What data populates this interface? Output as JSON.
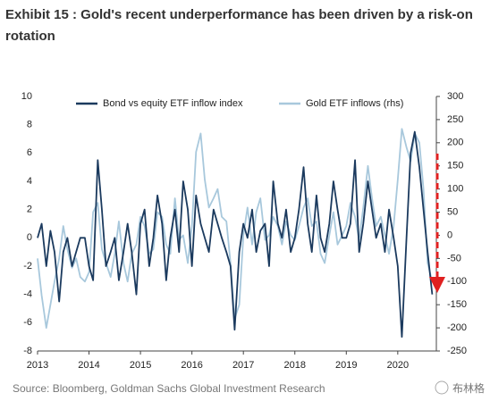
{
  "chart_data": {
    "type": "line",
    "title_lines": [
      "Exhibit 15 : Gold's recent underperformance has been driven by a risk-on",
      "rotation"
    ],
    "source": "Source: Bloomberg, Goldman Sachs Global Investment Research",
    "watermark": "布林格",
    "x": [
      2013,
      2013.08,
      2013.17,
      2013.25,
      2013.33,
      2013.42,
      2013.5,
      2013.58,
      2013.67,
      2013.75,
      2013.83,
      2013.92,
      2014,
      2014.08,
      2014.17,
      2014.25,
      2014.33,
      2014.42,
      2014.5,
      2014.58,
      2014.67,
      2014.75,
      2014.83,
      2014.92,
      2015,
      2015.08,
      2015.17,
      2015.25,
      2015.33,
      2015.42,
      2015.5,
      2015.58,
      2015.67,
      2015.75,
      2015.83,
      2015.92,
      2016,
      2016.08,
      2016.17,
      2016.25,
      2016.33,
      2016.42,
      2016.5,
      2016.58,
      2016.67,
      2016.75,
      2016.83,
      2016.92,
      2017,
      2017.08,
      2017.17,
      2017.25,
      2017.33,
      2017.42,
      2017.5,
      2017.58,
      2017.67,
      2017.75,
      2017.83,
      2017.92,
      2018,
      2018.08,
      2018.17,
      2018.25,
      2018.33,
      2018.42,
      2018.5,
      2018.58,
      2018.67,
      2018.75,
      2018.83,
      2018.92,
      2019,
      2019.08,
      2019.17,
      2019.25,
      2019.33,
      2019.42,
      2019.5,
      2019.58,
      2019.67,
      2019.75,
      2019.83,
      2019.92,
      2020,
      2020.08,
      2020.17,
      2020.25,
      2020.33,
      2020.42,
      2020.5,
      2020.58,
      2020.67
    ],
    "series": [
      {
        "name": "Bond vs equity ETF inflow index",
        "color": "#1b3a5e",
        "values": [
          0,
          1,
          -2,
          0.5,
          -1,
          -4.5,
          -1,
          0,
          -2,
          -1,
          0,
          0,
          -2,
          -3,
          5.5,
          2,
          -2,
          -1,
          0,
          -3,
          -1,
          1,
          -1,
          -4,
          1,
          2,
          -2,
          0,
          3,
          1,
          -3,
          0,
          2,
          -1,
          4,
          2,
          -2,
          3,
          1,
          0,
          -1,
          2,
          1,
          0,
          -1,
          -2,
          -6.5,
          -1,
          1,
          0,
          2,
          -1,
          0.5,
          1,
          -2,
          4,
          1,
          0,
          2,
          -1,
          0,
          2,
          5,
          1,
          -1,
          3,
          0,
          -1,
          1,
          4,
          2,
          0,
          0,
          1,
          5.5,
          -1,
          1,
          4,
          2,
          0,
          1,
          -1,
          2,
          0,
          -2,
          -7,
          0,
          6,
          7.5,
          5,
          2,
          -1,
          -4
        ]
      },
      {
        "name": "Gold ETF inflows (rhs)",
        "color": "#a8c8dc",
        "axis": "y2",
        "values": [
          -50,
          -130,
          -200,
          -150,
          -100,
          -50,
          20,
          -30,
          -70,
          -50,
          -90,
          -100,
          -80,
          50,
          70,
          -30,
          -60,
          -90,
          -40,
          30,
          -60,
          -100,
          -40,
          -20,
          40,
          20,
          -40,
          -30,
          50,
          40,
          -20,
          -40,
          80,
          -10,
          0,
          -60,
          20,
          180,
          220,
          120,
          60,
          80,
          100,
          40,
          30,
          -60,
          -180,
          -150,
          0,
          60,
          -20,
          50,
          80,
          -10,
          0,
          40,
          20,
          -20,
          30,
          0,
          -10,
          20,
          60,
          80,
          20,
          30,
          -40,
          -60,
          0,
          50,
          -20,
          0,
          20,
          70,
          40,
          -10,
          60,
          150,
          80,
          20,
          40,
          0,
          -40,
          20,
          120,
          230,
          190,
          160,
          220,
          200,
          100,
          -60,
          -100
        ]
      }
    ],
    "xlim": [
      2013,
      2020.75
    ],
    "xticks": [
      2013,
      2014,
      2015,
      2016,
      2017,
      2018,
      2019,
      2020
    ],
    "ylim": [
      -8,
      10
    ],
    "yticks": [
      -8,
      -6,
      -4,
      -2,
      0,
      2,
      4,
      6,
      8,
      10
    ],
    "y2lim": [
      -250,
      300
    ],
    "y2ticks": [
      -250,
      -200,
      -150,
      -100,
      -50,
      0,
      50,
      100,
      150,
      200,
      250,
      300
    ],
    "grid": false
  }
}
